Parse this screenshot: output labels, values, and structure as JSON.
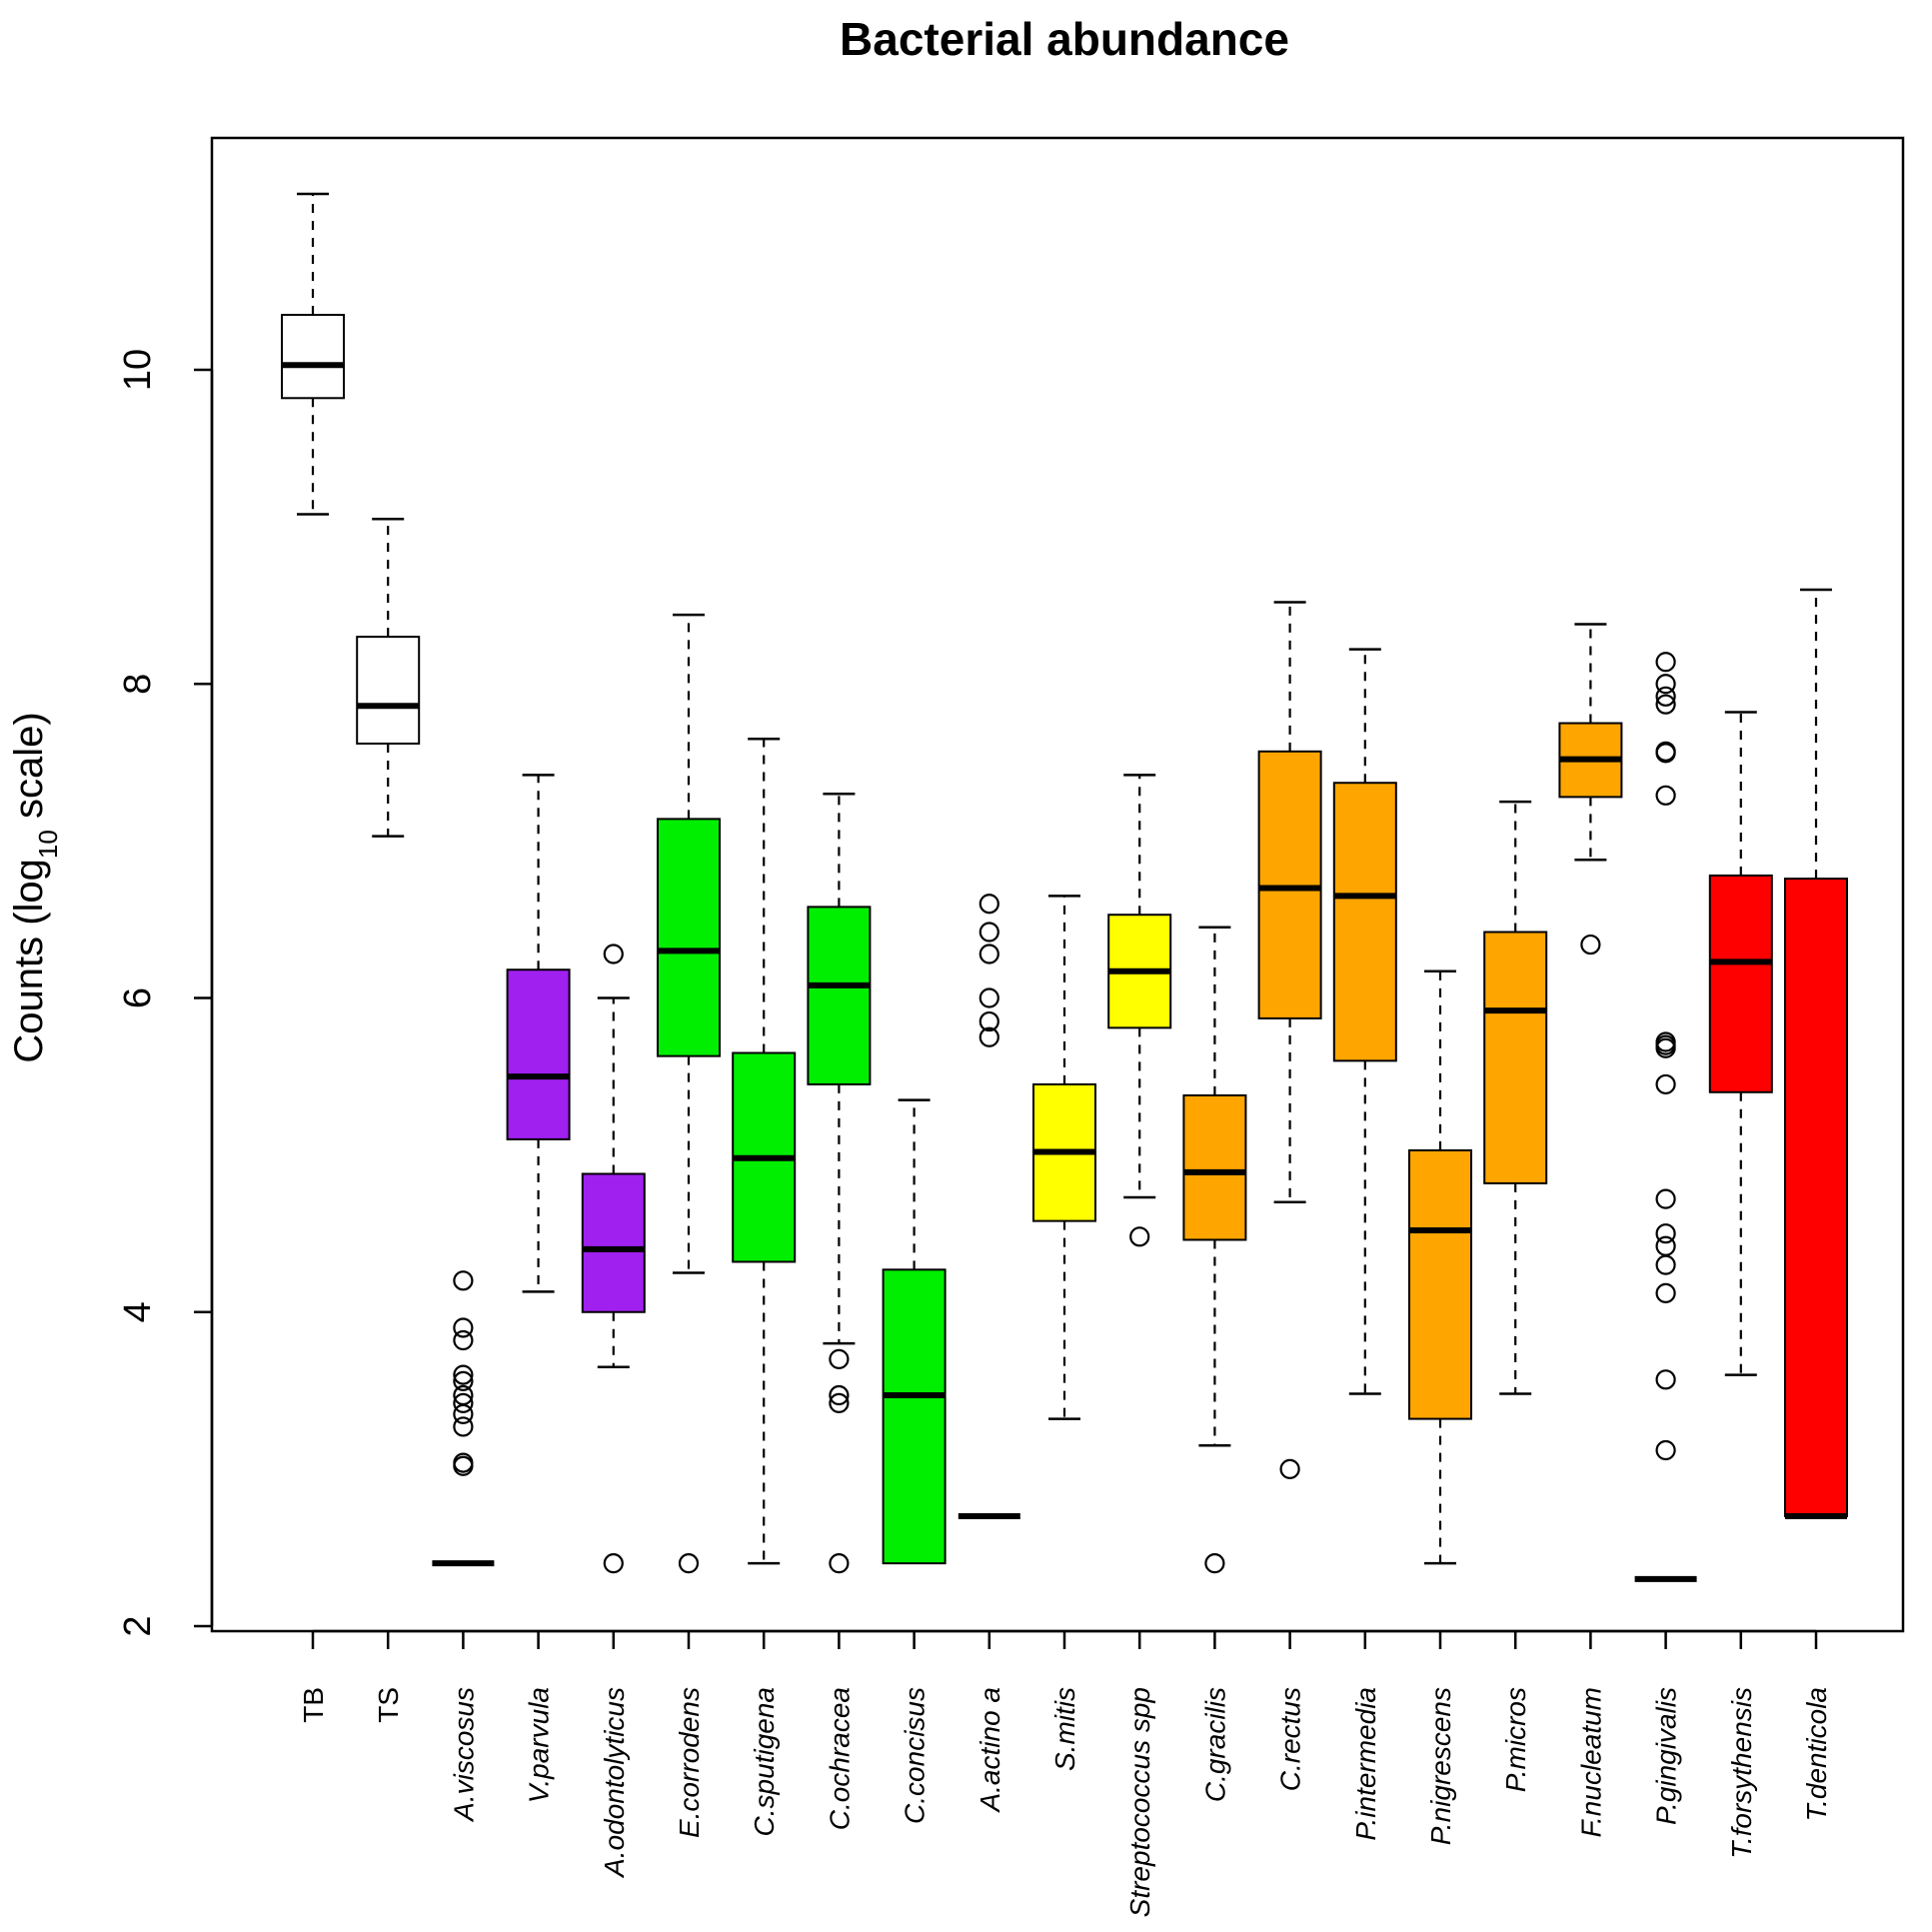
{
  "chart_data": {
    "type": "boxplot",
    "title": "Bacterial abundance",
    "ylabel_main": "Counts (log",
    "ylabel_sub": "10",
    "ylabel_tail": " scale)",
    "xlabel": "",
    "ylim": [
      2,
      11.8
    ],
    "yticks": [
      {
        "value": 2,
        "label": "2"
      },
      {
        "value": 4,
        "label": "4"
      },
      {
        "value": 6,
        "label": "6"
      },
      {
        "value": 8,
        "label": "8"
      },
      {
        "value": 10,
        "label": "10"
      }
    ],
    "categories": [
      {
        "name": "TB",
        "italic": false,
        "color": "#ffffff",
        "whisker_low": 9.08,
        "q1": 9.82,
        "median": 10.03,
        "q3": 10.35,
        "whisker_high": 11.12,
        "outliers": []
      },
      {
        "name": "TS",
        "italic": false,
        "color": "#ffffff",
        "whisker_low": 7.03,
        "q1": 7.62,
        "median": 7.86,
        "q3": 8.3,
        "whisker_high": 9.05,
        "outliers": []
      },
      {
        "name": "A.viscosus",
        "italic": true,
        "color": "#ffffff",
        "whisker_low": 2.4,
        "q1": 2.4,
        "median": 2.4,
        "q3": 2.4,
        "whisker_high": 2.4,
        "outliers": [
          4.2,
          3.9,
          3.82,
          3.6,
          3.56,
          3.47,
          3.42,
          3.35,
          3.27,
          3.04,
          3.02
        ]
      },
      {
        "name": "V.parvula",
        "italic": true,
        "color": "#a020f0",
        "whisker_low": 4.13,
        "q1": 5.1,
        "median": 5.5,
        "q3": 6.18,
        "whisker_high": 7.42,
        "outliers": []
      },
      {
        "name": "A.odontolyticus",
        "italic": true,
        "color": "#a020f0",
        "whisker_low": 3.65,
        "q1": 4.0,
        "median": 4.4,
        "q3": 4.88,
        "whisker_high": 6.0,
        "outliers": [
          6.28,
          2.4
        ]
      },
      {
        "name": "E.corrodens",
        "italic": true,
        "color": "#00ee00",
        "whisker_low": 4.25,
        "q1": 5.63,
        "median": 6.3,
        "q3": 7.14,
        "whisker_high": 8.44,
        "outliers": [
          2.4
        ]
      },
      {
        "name": "C.sputigena",
        "italic": true,
        "color": "#00ee00",
        "whisker_low": 2.4,
        "q1": 4.32,
        "median": 4.98,
        "q3": 5.65,
        "whisker_high": 7.65,
        "outliers": []
      },
      {
        "name": "C.ochracea",
        "italic": true,
        "color": "#00ee00",
        "whisker_low": 3.8,
        "q1": 5.45,
        "median": 6.08,
        "q3": 6.58,
        "whisker_high": 7.3,
        "outliers": [
          3.7,
          3.47,
          3.42,
          2.4
        ]
      },
      {
        "name": "C.concisus",
        "italic": true,
        "color": "#00ee00",
        "whisker_low": 2.4,
        "q1": 2.4,
        "median": 3.47,
        "q3": 4.27,
        "whisker_high": 5.35,
        "outliers": []
      },
      {
        "name": "A.actino a",
        "italic": true,
        "color": "#ffffff",
        "whisker_low": 2.7,
        "q1": 2.7,
        "median": 2.7,
        "q3": 2.7,
        "whisker_high": 2.7,
        "outliers": [
          6.6,
          6.42,
          6.28,
          6.0,
          5.85,
          5.75
        ]
      },
      {
        "name": "S.mitis",
        "italic": true,
        "color": "#ffff00",
        "whisker_low": 3.32,
        "q1": 4.58,
        "median": 5.02,
        "q3": 5.45,
        "whisker_high": 6.65,
        "outliers": []
      },
      {
        "name": "Streptococcus spp",
        "italic": true,
        "color": "#ffff00",
        "whisker_low": 4.73,
        "q1": 5.81,
        "median": 6.17,
        "q3": 6.53,
        "whisker_high": 7.42,
        "outliers": [
          4.48
        ]
      },
      {
        "name": "C.gracilis",
        "italic": true,
        "color": "#ffa500",
        "whisker_low": 3.15,
        "q1": 4.46,
        "median": 4.89,
        "q3": 5.38,
        "whisker_high": 6.45,
        "outliers": [
          2.4
        ]
      },
      {
        "name": "C.rectus",
        "italic": true,
        "color": "#ffa500",
        "whisker_low": 4.7,
        "q1": 5.87,
        "median": 6.7,
        "q3": 7.57,
        "whisker_high": 8.52,
        "outliers": [
          3.0
        ]
      },
      {
        "name": "P.intermedia",
        "italic": true,
        "color": "#ffa500",
        "whisker_low": 3.48,
        "q1": 5.6,
        "median": 6.65,
        "q3": 7.37,
        "whisker_high": 8.22,
        "outliers": []
      },
      {
        "name": "P.nigrescens",
        "italic": true,
        "color": "#ffa500",
        "whisker_low": 2.4,
        "q1": 3.32,
        "median": 4.52,
        "q3": 5.03,
        "whisker_high": 6.17,
        "outliers": []
      },
      {
        "name": "P.micros",
        "italic": true,
        "color": "#ffa500",
        "whisker_low": 3.48,
        "q1": 4.82,
        "median": 5.92,
        "q3": 6.42,
        "whisker_high": 7.25,
        "outliers": []
      },
      {
        "name": "F.nucleatum",
        "italic": true,
        "color": "#ffa500",
        "whisker_low": 6.88,
        "q1": 7.28,
        "median": 7.52,
        "q3": 7.75,
        "whisker_high": 8.38,
        "outliers": [
          6.34
        ]
      },
      {
        "name": "P.gingivalis",
        "italic": true,
        "color": "#ffffff",
        "whisker_low": 2.3,
        "q1": 2.3,
        "median": 2.3,
        "q3": 2.3,
        "whisker_high": 2.3,
        "outliers": [
          8.14,
          8.0,
          7.92,
          7.87,
          7.57,
          7.56,
          7.29,
          5.72,
          5.7,
          5.68,
          5.45,
          4.72,
          4.5,
          4.42,
          4.3,
          4.12,
          3.57,
          3.12
        ]
      },
      {
        "name": "T.forsythensis",
        "italic": true,
        "color": "#ff0000",
        "whisker_low": 3.6,
        "q1": 5.4,
        "median": 6.23,
        "q3": 6.78,
        "whisker_high": 7.82,
        "outliers": []
      },
      {
        "name": "T.denticola",
        "italic": true,
        "color": "#ff0000",
        "whisker_low": 2.7,
        "q1": 2.7,
        "median": 2.7,
        "q3": 6.76,
        "whisker_high": 8.6,
        "outliers": []
      }
    ]
  }
}
